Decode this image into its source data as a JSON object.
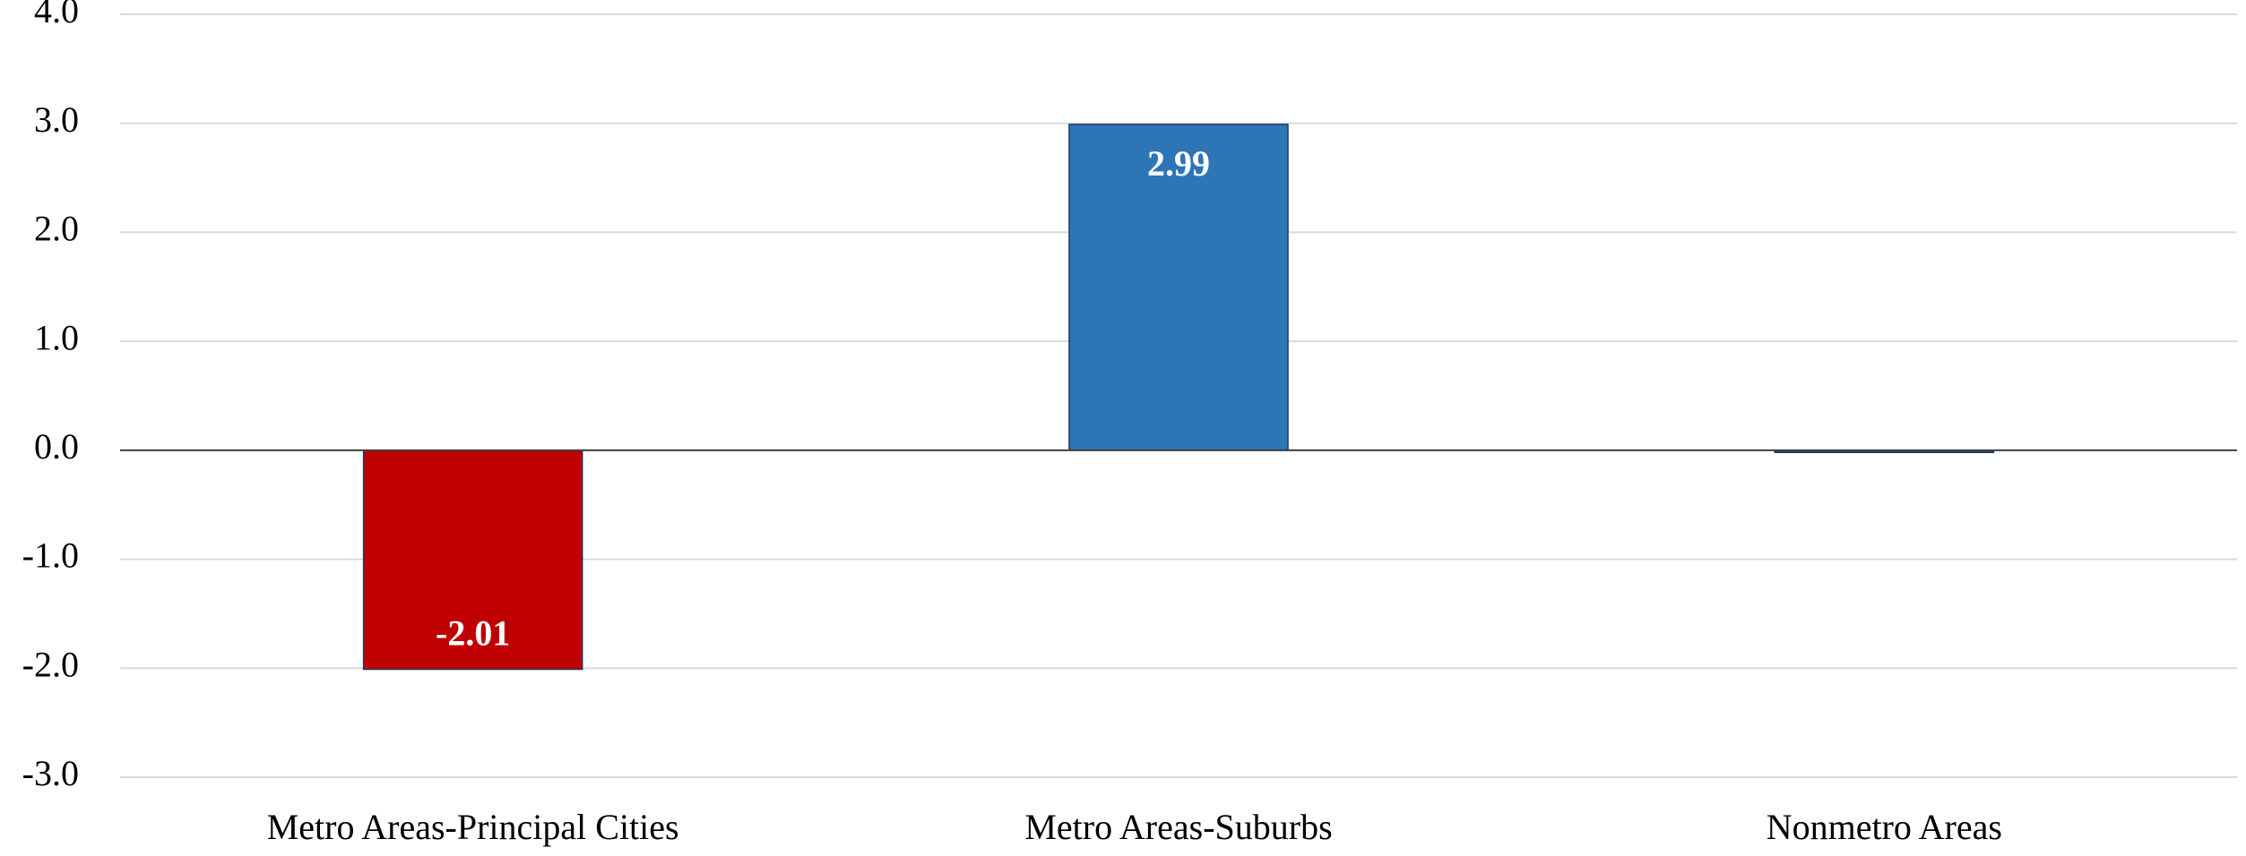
{
  "chart_data": {
    "type": "bar",
    "categories": [
      "Metro Areas-Principal Cities",
      "Metro Areas-Suburbs",
      "Nonmetro Areas"
    ],
    "values": [
      -2.01,
      2.99,
      -0.02
    ],
    "value_labels": [
      "-2.01",
      "2.99",
      null
    ],
    "colors": [
      "#c00000",
      "#2e75b6",
      "#1f3864"
    ],
    "ylim": [
      -3,
      4
    ],
    "yticks": [
      {
        "value": -3,
        "label": "-3.0"
      },
      {
        "value": -2,
        "label": "-2.0"
      },
      {
        "value": -1,
        "label": "-1.0"
      },
      {
        "value": 0,
        "label": "0.0"
      },
      {
        "value": 1,
        "label": "1.0"
      },
      {
        "value": 2,
        "label": "2.0"
      },
      {
        "value": 3,
        "label": "3.0"
      },
      {
        "value": 4,
        "label": "4.0"
      }
    ],
    "grid": true
  }
}
